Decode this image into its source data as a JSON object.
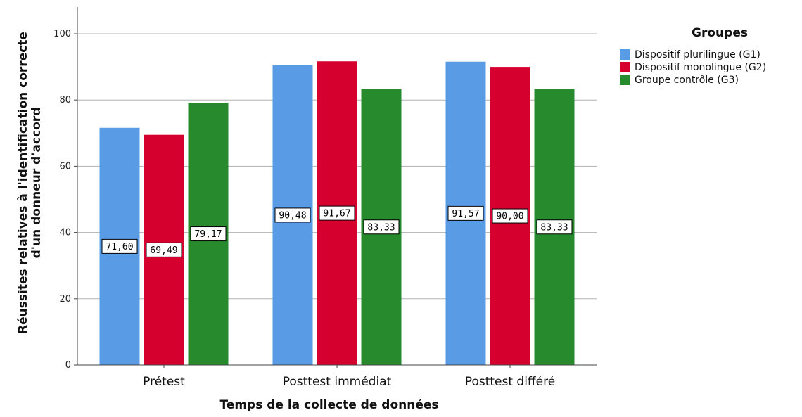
{
  "chart_data": {
    "type": "bar",
    "categories": [
      "Prétest",
      "Posttest immédiat",
      "Posttest différé"
    ],
    "series": [
      {
        "name": "Dispositif plurilingue (G1)",
        "color": "#5a9be6",
        "values": [
          71.6,
          90.48,
          91.57
        ],
        "labels": [
          "71,60",
          "90,48",
          "91,57"
        ]
      },
      {
        "name": "Dispositif monolingue (G2)",
        "color": "#d6002f",
        "values": [
          69.49,
          91.67,
          90.0
        ],
        "labels": [
          "69,49",
          "91,67",
          "90,00"
        ]
      },
      {
        "name": "Groupe contrôle (G3)",
        "color": "#278a2c",
        "values": [
          79.17,
          83.33,
          83.33
        ],
        "labels": [
          "79,17",
          "83,33",
          "83,33"
        ]
      }
    ],
    "xlabel": "Temps de la collecte de données",
    "ylabel_lines": [
      "Réussites relatives à l'identification correcte",
      "d'un donneur d'accord"
    ],
    "ylim": [
      0,
      100
    ],
    "yticks": [
      0,
      20,
      40,
      60,
      80,
      100
    ],
    "ytick_labels": [
      "0",
      "20",
      "40",
      "60",
      "80",
      "100"
    ],
    "legend": {
      "title": "Groupes",
      "position": "top-right"
    },
    "grid": true
  }
}
